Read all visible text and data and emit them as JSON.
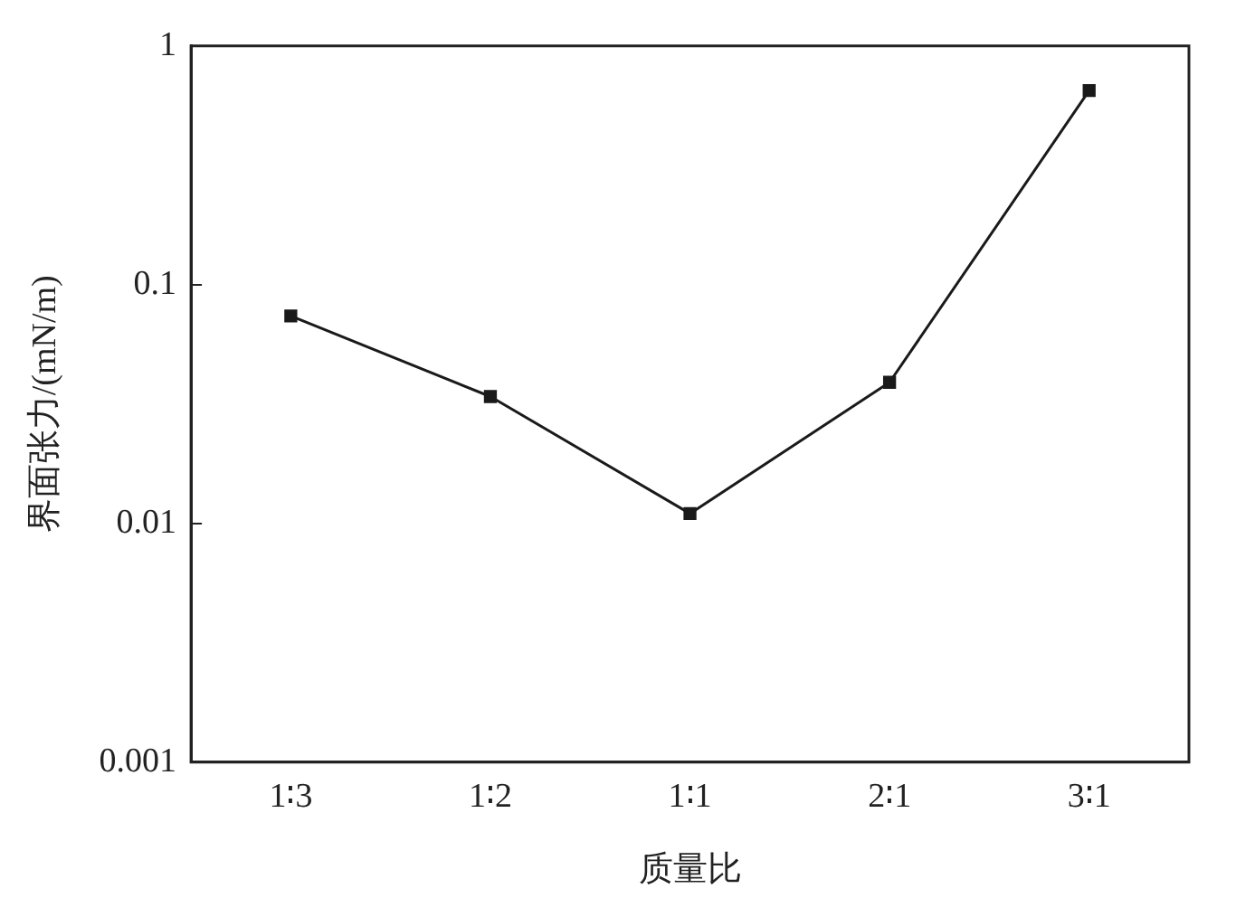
{
  "chart_data": {
    "type": "line",
    "xlabel": "质量比",
    "ylabel": "界面张力/(mN/m)",
    "categories": [
      "1∶3",
      "1∶2",
      "1∶1",
      "2∶1",
      "3∶1"
    ],
    "series": [
      {
        "color": "#1a1a1a",
        "values": [
          0.074,
          0.034,
          0.011,
          0.039,
          0.65
        ]
      }
    ],
    "log": "y",
    "ylim": [
      0.001,
      1
    ],
    "yticks": [
      0.001,
      0.01,
      0.1,
      1
    ],
    "grid": false,
    "legend": false,
    "marker": "square",
    "line_style": "solid"
  }
}
